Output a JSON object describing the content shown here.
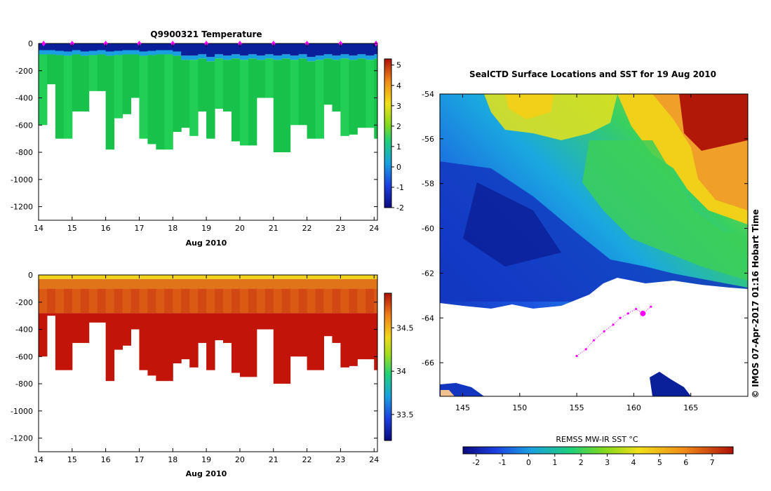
{
  "temp_panel": {
    "title": "Q9900321  Temperature",
    "xlabel": "Aug 2010",
    "x_ticks": [
      "14",
      "15",
      "16",
      "17",
      "18",
      "19",
      "20",
      "21",
      "22",
      "23",
      "24"
    ],
    "y_ticks": [
      "0",
      "-200",
      "-400",
      "-600",
      "-800",
      "-1000",
      "-1200"
    ],
    "colorbar_ticks": [
      "5",
      "4",
      "3",
      "2",
      "1",
      "0",
      "-1",
      "-2"
    ],
    "colors": {
      "surface": "#0a1f9a",
      "deep": "#18c24a",
      "deep_alt": "#21cf55",
      "mid": "#1aa0e0"
    }
  },
  "sal_panel": {
    "title": "",
    "xlabel": "Aug 2010",
    "x_ticks": [
      "14",
      "15",
      "16",
      "17",
      "18",
      "19",
      "20",
      "21",
      "22",
      "23",
      "24"
    ],
    "y_ticks": [
      "0",
      "-200",
      "-400",
      "-600",
      "-800",
      "-1000",
      "-1200"
    ],
    "colorbar_ticks": [
      "34.5",
      "34",
      "33.5"
    ],
    "colors": {
      "surface": "#f2d21a",
      "mid": "#e07418",
      "deep": "#c21408"
    }
  },
  "map_panel": {
    "title": "SealCTD Surface Locations and SST for 19 Aug 2010",
    "x_ticks": [
      "145",
      "150",
      "155",
      "160",
      "165"
    ],
    "y_ticks": [
      "-54",
      "-56",
      "-58",
      "-60",
      "-62",
      "-64",
      "-66"
    ],
    "colorbar_label": "REMSS MW-IR SST °C",
    "colorbar_ticks": [
      "-2",
      "-1",
      "0",
      "1",
      "2",
      "3",
      "4",
      "5",
      "6",
      "7"
    ],
    "track_color": "#ff00ff",
    "copyright": "©  IMOS 07-Apr-2017 01:16 Hobart Time"
  },
  "chart_data": [
    {
      "type": "heatmap",
      "title": "Q9900321  Temperature",
      "xlabel": "Aug 2010",
      "ylabel": "",
      "xlim": [
        14,
        24.1
      ],
      "ylim": [
        -1300,
        0
      ],
      "colorbar_range": [
        -2,
        5.3
      ],
      "profile_days": [
        14.0,
        14.25,
        14.5,
        14.75,
        15.0,
        15.25,
        15.5,
        15.75,
        16.0,
        16.25,
        16.5,
        16.75,
        17.0,
        17.25,
        17.5,
        17.75,
        18.0,
        18.25,
        18.5,
        18.75,
        19.0,
        19.25,
        19.5,
        19.75,
        20.0,
        20.25,
        20.5,
        20.75,
        21.0,
        21.25,
        21.5,
        21.75,
        22.0,
        22.25,
        22.5,
        22.75,
        23.0,
        23.25,
        23.5,
        23.75,
        24.0
      ],
      "max_depth": [
        600,
        300,
        700,
        700,
        500,
        500,
        350,
        350,
        780,
        550,
        520,
        400,
        700,
        740,
        780,
        780,
        650,
        620,
        680,
        500,
        700,
        480,
        500,
        720,
        750,
        750,
        400,
        400,
        800,
        800,
        600,
        600,
        700,
        700,
        450,
        500,
        680,
        670,
        620,
        620,
        700
      ],
      "surface_layer_depth": [
        80,
        80,
        85,
        90,
        80,
        90,
        85,
        80,
        90,
        85,
        80,
        80,
        90,
        85,
        80,
        80,
        90,
        120,
        120,
        110,
        130,
        110,
        120,
        110,
        120,
        110,
        120,
        110,
        120,
        110,
        120,
        110,
        130,
        120,
        110,
        120,
        110,
        120,
        110,
        120,
        110
      ],
      "surface_temp": -1.8,
      "deep_temp": 1.8,
      "series": [
        {
          "name": "profile markers",
          "x": [
            14.15,
            15.0,
            16.0,
            17.0,
            18.0,
            19.0,
            20.0,
            21.0,
            22.0,
            23.0,
            24.1
          ]
        }
      ]
    },
    {
      "type": "heatmap",
      "title": "",
      "xlabel": "Aug 2010",
      "ylabel": "",
      "xlim": [
        14,
        24.1
      ],
      "ylim": [
        -1300,
        0
      ],
      "colorbar_range": [
        33.2,
        34.9
      ],
      "profile_days": [
        14.0,
        14.25,
        14.5,
        14.75,
        15.0,
        15.25,
        15.5,
        15.75,
        16.0,
        16.25,
        16.5,
        16.75,
        17.0,
        17.25,
        17.5,
        17.75,
        18.0,
        18.25,
        18.5,
        18.75,
        19.0,
        19.25,
        19.5,
        19.75,
        20.0,
        20.25,
        20.5,
        20.75,
        21.0,
        21.25,
        21.5,
        21.75,
        22.0,
        22.25,
        22.5,
        22.75,
        23.0,
        23.25,
        23.5,
        23.75,
        24.0
      ],
      "max_depth": [
        600,
        300,
        700,
        700,
        500,
        500,
        350,
        350,
        780,
        550,
        520,
        400,
        700,
        740,
        780,
        780,
        650,
        620,
        680,
        500,
        700,
        480,
        500,
        720,
        750,
        750,
        400,
        400,
        800,
        800,
        600,
        600,
        700,
        700,
        450,
        500,
        680,
        670,
        620,
        620,
        700
      ],
      "surface_salinity": 34.3,
      "deep_salinity": 34.75
    },
    {
      "type": "heatmap",
      "title": "SealCTD Surface Locations and SST for 19 Aug 2010",
      "xlim": [
        143,
        170
      ],
      "ylim": [
        -67.5,
        -54
      ],
      "colorbar_label": "REMSS MW-IR SST °C",
      "colorbar_range": [
        -2.5,
        7.8
      ],
      "series": [
        {
          "name": "seal track",
          "x": [
            155.0,
            155.8,
            156.5,
            157.4,
            158.2,
            158.8,
            159.5,
            160.2,
            160.8,
            161.5
          ],
          "y": [
            -65.7,
            -65.4,
            -65.0,
            -64.6,
            -64.3,
            -64.0,
            -63.8,
            -63.6,
            -63.8,
            -63.5
          ]
        }
      ]
    }
  ]
}
